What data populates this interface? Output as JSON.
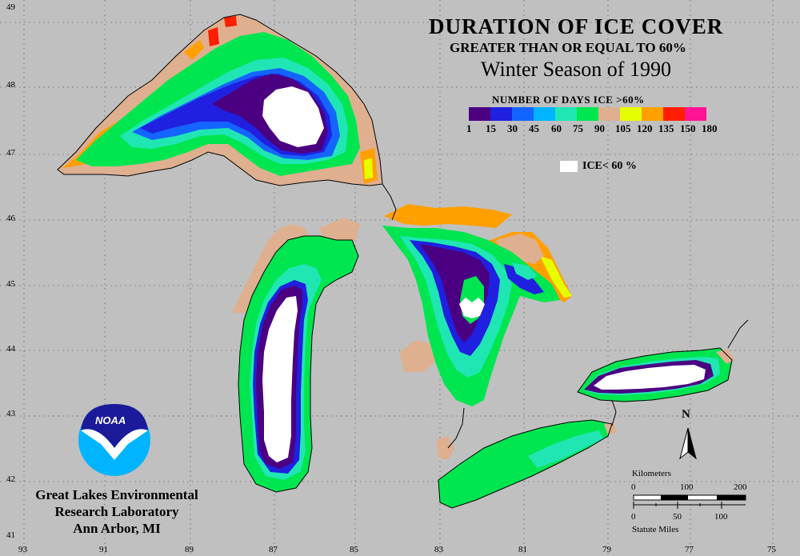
{
  "title": {
    "main": "DURATION OF ICE COVER",
    "sub": "GREATER THAN OR EQUAL TO 60%",
    "season": "Winter Season of 1990"
  },
  "legend": {
    "heading": "NUMBER OF DAYS ICE >60%",
    "colors": [
      "#4b0082",
      "#2020e0",
      "#1464ff",
      "#00b4ff",
      "#20e6b4",
      "#00e650",
      "#deb090",
      "#e6ff00",
      "#ffa000",
      "#ff1e00",
      "#ff1493"
    ],
    "ticks": [
      "1",
      "15",
      "30",
      "45",
      "60",
      "75",
      "90",
      "105",
      "120",
      "135",
      "150",
      "180"
    ],
    "ice_label": "ICE< 60 %",
    "ice_color": "#ffffff"
  },
  "lat_labels": [
    "49",
    "48",
    "47",
    "46",
    "45",
    "44",
    "43",
    "42",
    "41"
  ],
  "lon_labels": [
    "93",
    "91",
    "89",
    "87",
    "85",
    "83",
    "81",
    "79",
    "77",
    "75"
  ],
  "scale": {
    "km_title": "Kilometers",
    "km_ticks": [
      "0",
      "100",
      "200"
    ],
    "mi_ticks": [
      "0",
      "50",
      "100"
    ],
    "mi_title": "Statute Miles"
  },
  "north_label": "N",
  "logo_text": "NOAA",
  "lab": {
    "line1": "Great Lakes Environmental",
    "line2": "Research Laboratory",
    "line3": "Ann Arbor, MI"
  },
  "lakes": [
    "Superior",
    "Michigan",
    "Huron",
    "Erie",
    "Ontario"
  ]
}
